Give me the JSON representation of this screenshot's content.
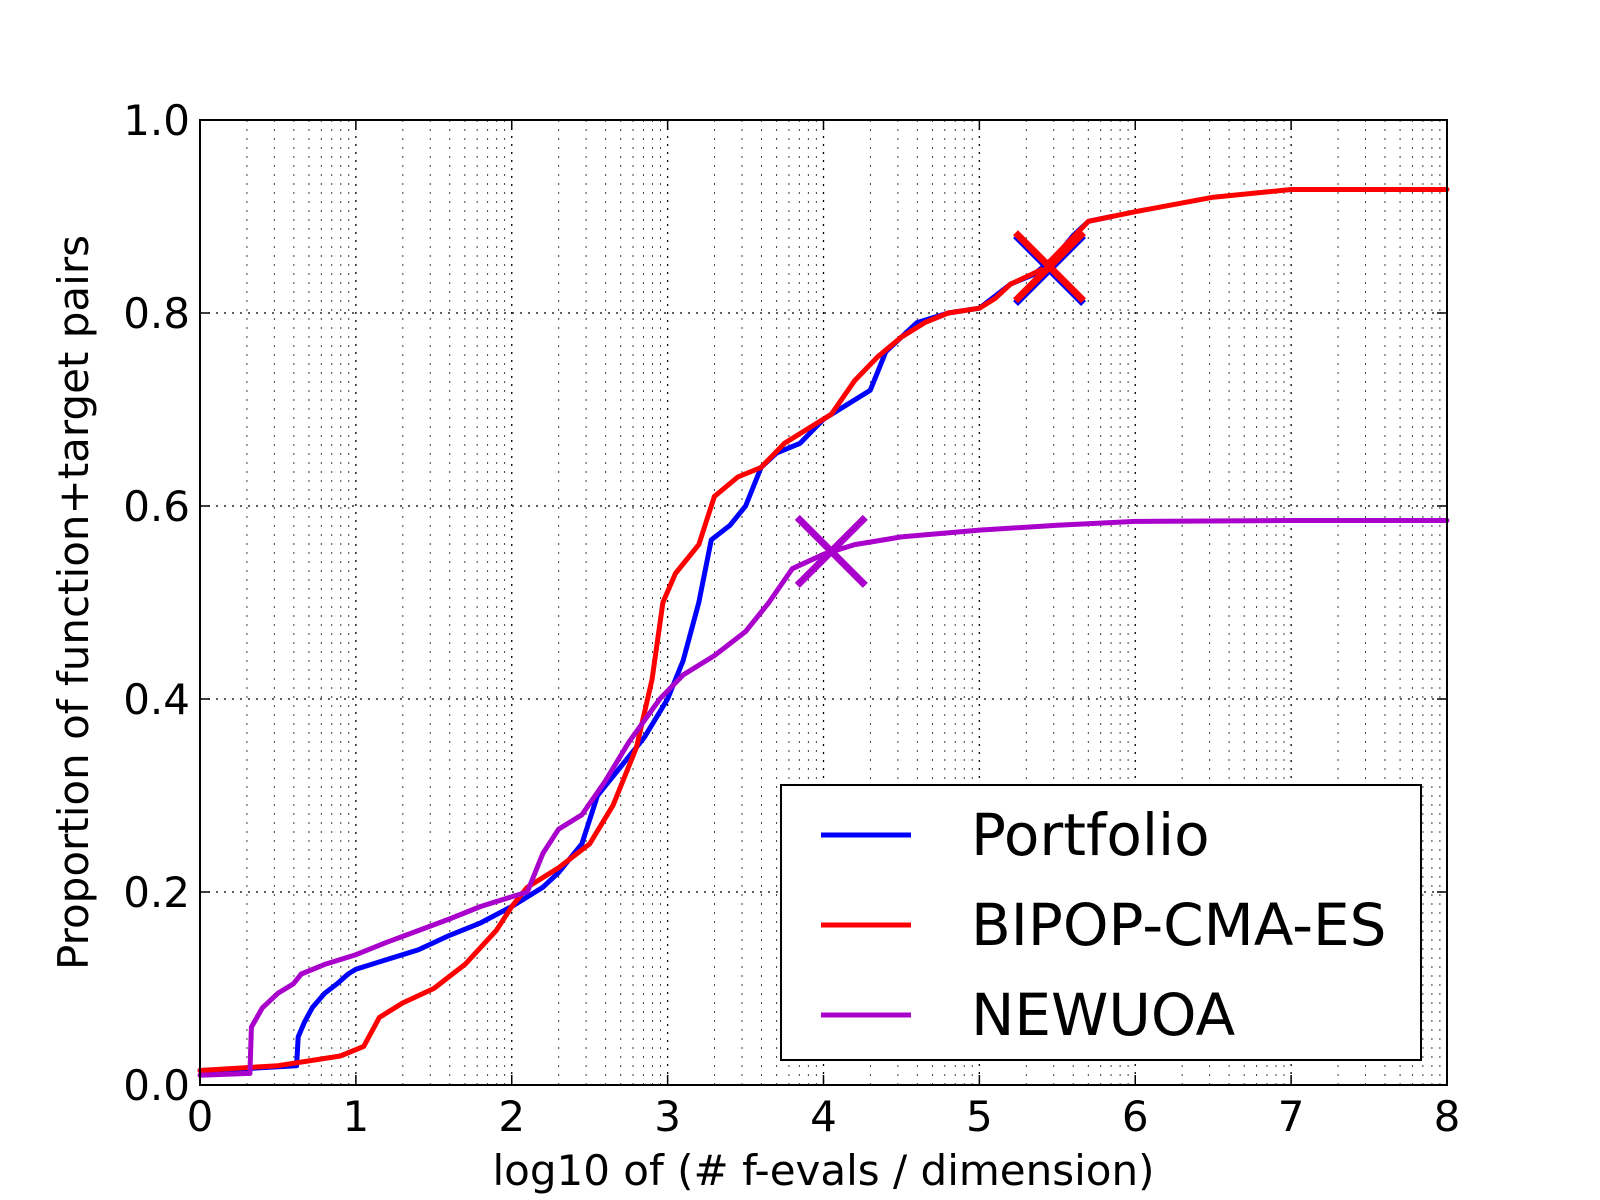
{
  "chart_data": {
    "type": "line",
    "xlabel": "log10 of (# f-evals / dimension)",
    "ylabel": "Proportion of function+target pairs",
    "xlim": [
      0,
      8
    ],
    "ylim": [
      0.0,
      1.0
    ],
    "x_ticks": [
      0,
      1,
      2,
      3,
      4,
      5,
      6,
      7,
      8
    ],
    "x_tick_labels": [
      "0",
      "1",
      "2",
      "3",
      "4",
      "5",
      "6",
      "7",
      "8"
    ],
    "y_ticks": [
      0.0,
      0.2,
      0.4,
      0.6,
      0.8,
      1.0
    ],
    "y_tick_labels": [
      "0.0",
      "0.2",
      "0.4",
      "0.6",
      "0.8",
      "1.0"
    ],
    "grid": true,
    "legend_position": "bottom-right",
    "series": [
      {
        "name": "Portfolio",
        "color": "#0000ff",
        "points": [
          [
            0,
            0.015
          ],
          [
            0.3,
            0.017
          ],
          [
            0.62,
            0.02
          ],
          [
            0.63,
            0.05
          ],
          [
            0.67,
            0.065
          ],
          [
            0.72,
            0.08
          ],
          [
            0.8,
            0.095
          ],
          [
            0.88,
            0.105
          ],
          [
            0.95,
            0.115
          ],
          [
            1.0,
            0.12
          ],
          [
            1.2,
            0.13
          ],
          [
            1.4,
            0.14
          ],
          [
            1.6,
            0.155
          ],
          [
            1.8,
            0.168
          ],
          [
            2.0,
            0.185
          ],
          [
            2.2,
            0.205
          ],
          [
            2.3,
            0.22
          ],
          [
            2.45,
            0.25
          ],
          [
            2.55,
            0.3
          ],
          [
            2.7,
            0.33
          ],
          [
            2.85,
            0.36
          ],
          [
            3.0,
            0.4
          ],
          [
            3.1,
            0.44
          ],
          [
            3.2,
            0.5
          ],
          [
            3.28,
            0.565
          ],
          [
            3.4,
            0.58
          ],
          [
            3.5,
            0.6
          ],
          [
            3.6,
            0.64
          ],
          [
            3.7,
            0.655
          ],
          [
            3.85,
            0.665
          ],
          [
            4.0,
            0.69
          ],
          [
            4.15,
            0.705
          ],
          [
            4.3,
            0.72
          ],
          [
            4.4,
            0.76
          ],
          [
            4.6,
            0.79
          ],
          [
            4.8,
            0.8
          ],
          [
            5.0,
            0.805
          ],
          [
            5.2,
            0.83
          ],
          [
            5.35,
            0.84
          ],
          [
            5.5,
            0.86
          ],
          [
            5.6,
            0.88
          ],
          [
            5.7,
            0.895
          ],
          [
            5.85,
            0.9
          ]
        ]
      },
      {
        "name": "BIPOP-CMA-ES",
        "color": "#ff0000",
        "points": [
          [
            0,
            0.015
          ],
          [
            0.5,
            0.02
          ],
          [
            0.9,
            0.03
          ],
          [
            1.05,
            0.04
          ],
          [
            1.15,
            0.07
          ],
          [
            1.3,
            0.085
          ],
          [
            1.5,
            0.1
          ],
          [
            1.7,
            0.125
          ],
          [
            1.9,
            0.16
          ],
          [
            2.0,
            0.185
          ],
          [
            2.1,
            0.205
          ],
          [
            2.3,
            0.225
          ],
          [
            2.5,
            0.25
          ],
          [
            2.65,
            0.29
          ],
          [
            2.8,
            0.35
          ],
          [
            2.9,
            0.42
          ],
          [
            2.97,
            0.5
          ],
          [
            3.05,
            0.53
          ],
          [
            3.2,
            0.56
          ],
          [
            3.3,
            0.61
          ],
          [
            3.45,
            0.63
          ],
          [
            3.6,
            0.64
          ],
          [
            3.75,
            0.665
          ],
          [
            3.9,
            0.68
          ],
          [
            4.05,
            0.695
          ],
          [
            4.2,
            0.73
          ],
          [
            4.35,
            0.755
          ],
          [
            4.5,
            0.775
          ],
          [
            4.65,
            0.79
          ],
          [
            4.8,
            0.8
          ],
          [
            5.0,
            0.805
          ],
          [
            5.1,
            0.815
          ],
          [
            5.2,
            0.83
          ],
          [
            5.4,
            0.845
          ],
          [
            5.55,
            0.87
          ],
          [
            5.7,
            0.895
          ],
          [
            6.0,
            0.905
          ],
          [
            6.5,
            0.92
          ],
          [
            7.0,
            0.928
          ],
          [
            8.0,
            0.928
          ]
        ]
      },
      {
        "name": "NEWUOA",
        "color": "#aa00cc",
        "points": [
          [
            0,
            0.01
          ],
          [
            0.32,
            0.012
          ],
          [
            0.33,
            0.06
          ],
          [
            0.4,
            0.08
          ],
          [
            0.5,
            0.095
          ],
          [
            0.6,
            0.105
          ],
          [
            0.65,
            0.115
          ],
          [
            0.8,
            0.125
          ],
          [
            1.0,
            0.135
          ],
          [
            1.2,
            0.148
          ],
          [
            1.4,
            0.16
          ],
          [
            1.6,
            0.172
          ],
          [
            1.8,
            0.185
          ],
          [
            2.0,
            0.195
          ],
          [
            2.1,
            0.2
          ],
          [
            2.2,
            0.24
          ],
          [
            2.3,
            0.265
          ],
          [
            2.45,
            0.28
          ],
          [
            2.6,
            0.315
          ],
          [
            2.75,
            0.355
          ],
          [
            2.95,
            0.4
          ],
          [
            3.1,
            0.425
          ],
          [
            3.3,
            0.445
          ],
          [
            3.5,
            0.47
          ],
          [
            3.65,
            0.5
          ],
          [
            3.8,
            0.535
          ],
          [
            4.0,
            0.55
          ],
          [
            4.2,
            0.56
          ],
          [
            4.5,
            0.568
          ],
          [
            5.0,
            0.575
          ],
          [
            5.5,
            0.58
          ],
          [
            6.0,
            0.584
          ],
          [
            7.0,
            0.585
          ],
          [
            8.0,
            0.585
          ]
        ]
      }
    ],
    "markers": [
      {
        "series": "Portfolio",
        "x": 5.45,
        "y": 0.845,
        "symbol": "x",
        "color": "#0000ff"
      },
      {
        "series": "BIPOP-CMA-ES",
        "x": 5.45,
        "y": 0.848,
        "symbol": "x",
        "color": "#ff0000"
      },
      {
        "series": "NEWUOA",
        "x": 4.05,
        "y": 0.553,
        "symbol": "x",
        "color": "#aa00cc"
      }
    ]
  }
}
